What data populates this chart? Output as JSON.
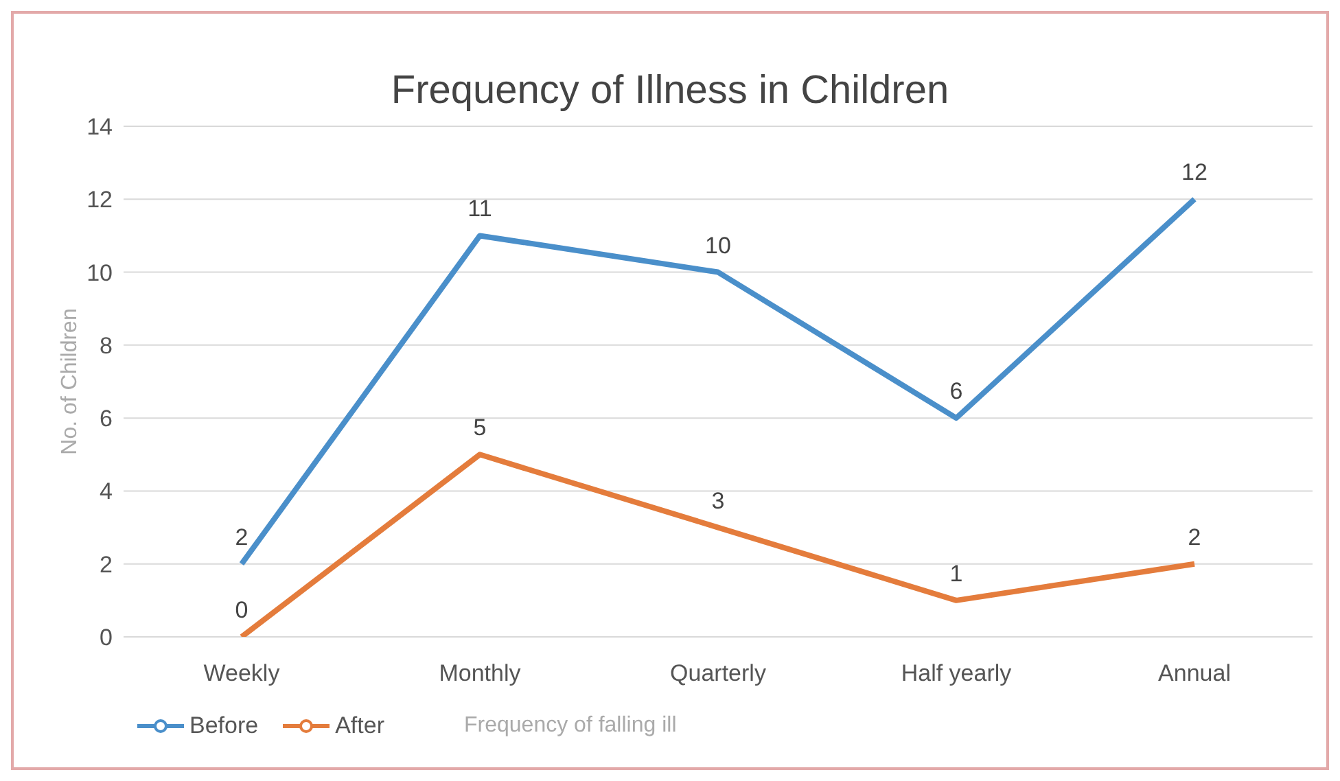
{
  "chart_data": {
    "type": "line",
    "title": "Frequency of Illness in Children",
    "xlabel": "Frequency of falling ill",
    "ylabel": "No. of Children",
    "categories": [
      "Weekly",
      "Monthly",
      "Quarterly",
      "Half yearly",
      "Annual"
    ],
    "series": [
      {
        "name": "Before",
        "color": "#4a8fca",
        "values": [
          2,
          11,
          10,
          6,
          12
        ]
      },
      {
        "name": "After",
        "color": "#e47c3c",
        "values": [
          0,
          5,
          3,
          1,
          2
        ]
      }
    ],
    "ylim": [
      0,
      14
    ],
    "yticks": [
      0,
      2,
      4,
      6,
      8,
      10,
      12,
      14
    ],
    "grid": "y",
    "legend": "bottom",
    "data_labels": true,
    "marker": "none",
    "line_style": "solid"
  }
}
